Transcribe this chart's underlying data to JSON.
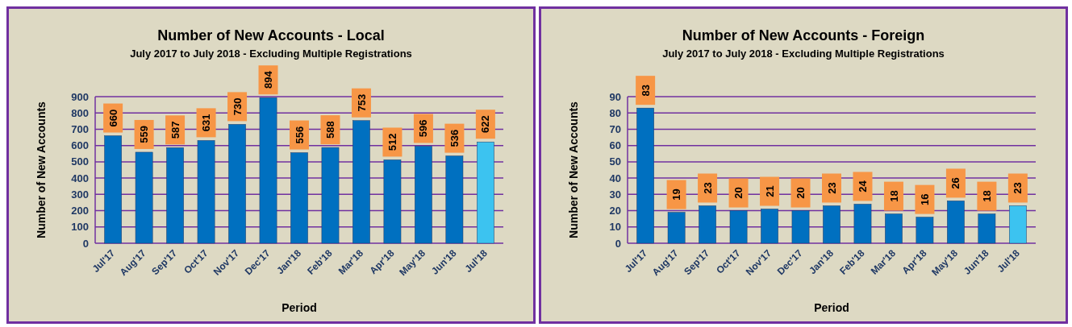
{
  "chart_data": [
    {
      "type": "bar",
      "title": "Number of New Accounts - Local",
      "subtitle": "July 2017 to July 2018 - Excluding Multiple Registrations",
      "xlabel": "Period",
      "ylabel": "Number of New Accounts",
      "categories": [
        "Jul'17",
        "Aug'17",
        "Sep'17",
        "Oct'17",
        "Nov'17",
        "Dec'17",
        "Jan'18",
        "Feb'18",
        "Mar'18",
        "Apr'18",
        "May'18",
        "Jun'18",
        "Jul'18"
      ],
      "values": [
        660,
        559,
        587,
        631,
        730,
        894,
        556,
        588,
        753,
        512,
        596,
        536,
        622
      ],
      "colors": [
        "#0070c0",
        "#0070c0",
        "#0070c0",
        "#0070c0",
        "#0070c0",
        "#0070c0",
        "#0070c0",
        "#0070c0",
        "#0070c0",
        "#0070c0",
        "#0070c0",
        "#0070c0",
        "#3cc3f0"
      ],
      "ylim": [
        0,
        900
      ],
      "yticks": [
        0,
        100,
        200,
        300,
        400,
        500,
        600,
        700,
        800,
        900
      ],
      "grid": "y",
      "data_labels": true
    },
    {
      "type": "bar",
      "title": "Number of New Accounts - Foreign",
      "subtitle": "July 2017 to July 2018 - Excluding Multiple Registrations",
      "xlabel": "Period",
      "ylabel": "Number of New Accounts",
      "categories": [
        "Jul'17",
        "Aug'17",
        "Sep'17",
        "Oct'17",
        "Nov'17",
        "Dec'17",
        "Jan'18",
        "Feb'18",
        "Mar'18",
        "Apr'18",
        "May'18",
        "Jun'18",
        "Jul'18"
      ],
      "values": [
        83,
        19,
        23,
        20,
        21,
        20,
        23,
        24,
        18,
        16,
        26,
        18,
        23
      ],
      "colors": [
        "#0070c0",
        "#0070c0",
        "#0070c0",
        "#0070c0",
        "#0070c0",
        "#0070c0",
        "#0070c0",
        "#0070c0",
        "#0070c0",
        "#0070c0",
        "#0070c0",
        "#0070c0",
        "#3cc3f0"
      ],
      "ylim": [
        0,
        90
      ],
      "yticks": [
        0,
        10,
        20,
        30,
        40,
        50,
        60,
        70,
        80,
        90
      ],
      "grid": "y",
      "data_labels": true
    }
  ]
}
